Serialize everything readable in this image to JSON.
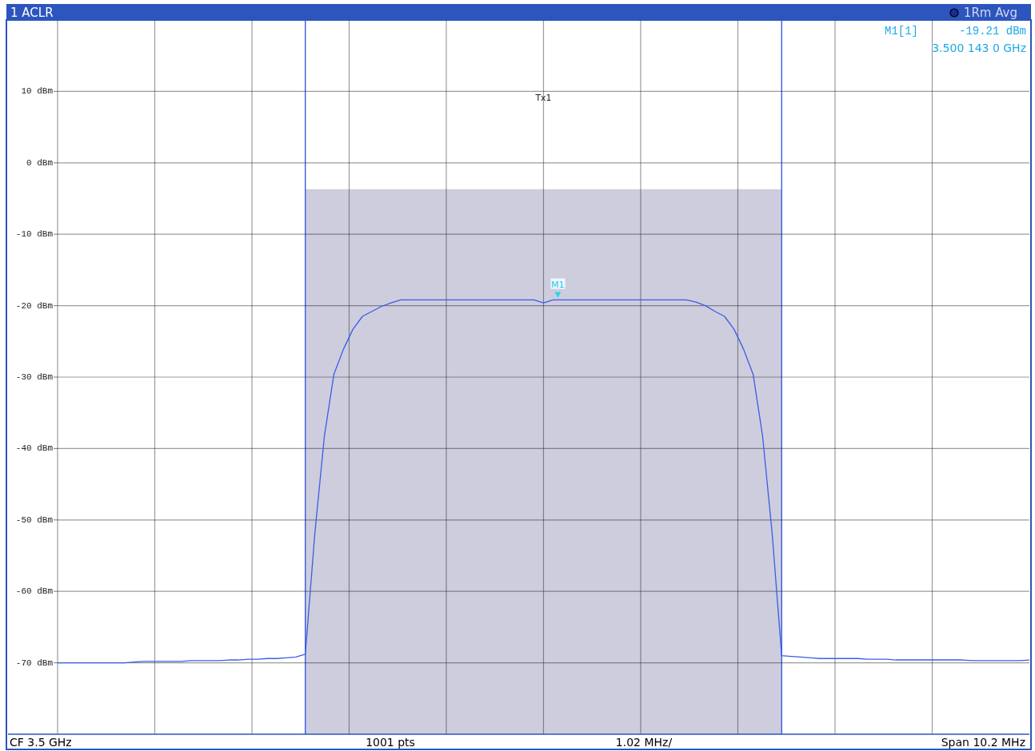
{
  "chart_data": {
    "type": "line",
    "title": "1 ACLR",
    "categories": [
      null,
      null,
      null,
      null,
      null,
      null,
      null,
      null,
      null,
      null,
      null,
      null,
      null,
      null,
      null,
      null,
      null,
      null,
      null,
      null,
      null,
      null,
      null,
      null,
      null,
      null,
      null,
      null,
      null,
      null,
      null,
      null,
      null,
      null,
      null,
      null,
      null,
      null,
      null,
      null,
      null,
      null,
      null,
      null,
      null,
      null,
      null,
      null,
      null,
      null,
      null,
      null,
      null,
      null,
      null,
      null,
      null,
      null,
      null,
      null,
      null,
      null,
      null,
      null,
      null,
      null,
      null,
      null,
      null,
      null,
      null,
      null,
      null,
      null,
      null,
      null,
      null,
      null,
      null,
      null,
      null,
      null,
      null,
      null,
      null,
      null,
      null,
      null,
      null,
      null,
      null,
      null,
      null,
      null,
      null,
      null,
      null,
      null,
      null,
      null,
      null,
      null,
      null
    ],
    "ylim": [
      -80,
      20
    ],
    "yticks": [
      {
        "value": 10,
        "label": "10 dBm"
      },
      {
        "value": 0,
        "label": "0 dBm"
      },
      {
        "value": -10,
        "label": "-10 dBm"
      },
      {
        "value": -20,
        "label": "-20 dBm"
      },
      {
        "value": -30,
        "label": "-30 dBm"
      },
      {
        "value": -40,
        "label": "-40 dBm"
      },
      {
        "value": -50,
        "label": "-50 dBm"
      },
      {
        "value": -60,
        "label": "-60 dBm"
      },
      {
        "value": -70,
        "label": "-70 dBm"
      }
    ],
    "tick_labels": "y",
    "grid": true,
    "series": [
      {
        "color": "#3a5ce8",
        "values": [
          -70,
          -70,
          -70,
          -70,
          -70,
          -70,
          -70,
          -70,
          -69.9,
          -69.8,
          -69.8,
          -69.8,
          -69.8,
          -69.8,
          -69.7,
          -69.7,
          -69.7,
          -69.7,
          -69.6,
          -69.6,
          -69.5,
          -69.5,
          -69.4,
          -69.4,
          -69.3,
          -69.2,
          -68.8,
          -51.9,
          -38.3,
          -29.6,
          -26.1,
          -23.3,
          -21.5,
          -20.8,
          -20.1,
          -19.6,
          -19.2,
          -19.2,
          -19.2,
          -19.2,
          -19.2,
          -19.2,
          -19.2,
          -19.2,
          -19.2,
          -19.2,
          -19.2,
          -19.2,
          -19.2,
          -19.2,
          -19.2,
          -19.6,
          -19.2,
          -19.2,
          -19.2,
          -19.2,
          -19.2,
          -19.2,
          -19.2,
          -19.2,
          -19.2,
          -19.2,
          -19.2,
          -19.2,
          -19.2,
          -19.2,
          -19.2,
          -19.5,
          -20,
          -20.8,
          -21.5,
          -23.3,
          -26.1,
          -29.6,
          -38.3,
          -51.9,
          -69,
          -69.1,
          -69.2,
          -69.3,
          -69.4,
          -69.4,
          -69.4,
          -69.4,
          -69.4,
          -69.5,
          -69.5,
          -69.5,
          -69.6,
          -69.6,
          -69.6,
          -69.6,
          -69.6,
          -69.6,
          -69.6,
          -69.6,
          -69.7,
          -69.7,
          -69.7,
          -69.7,
          -69.7,
          -69.7,
          -69.6
        ]
      }
    ],
    "annotations": [
      "1Rm Avg",
      "M1[1]",
      "-19.21 dBm",
      "3.500 143 0 GHz",
      "CF 3.5 GHz",
      "1001 pts",
      "1.02 MHz/",
      "Span 10.2 MHz",
      "Tx1",
      {
        "text": "M1",
        "y": -19.21
      }
    ]
  }
}
